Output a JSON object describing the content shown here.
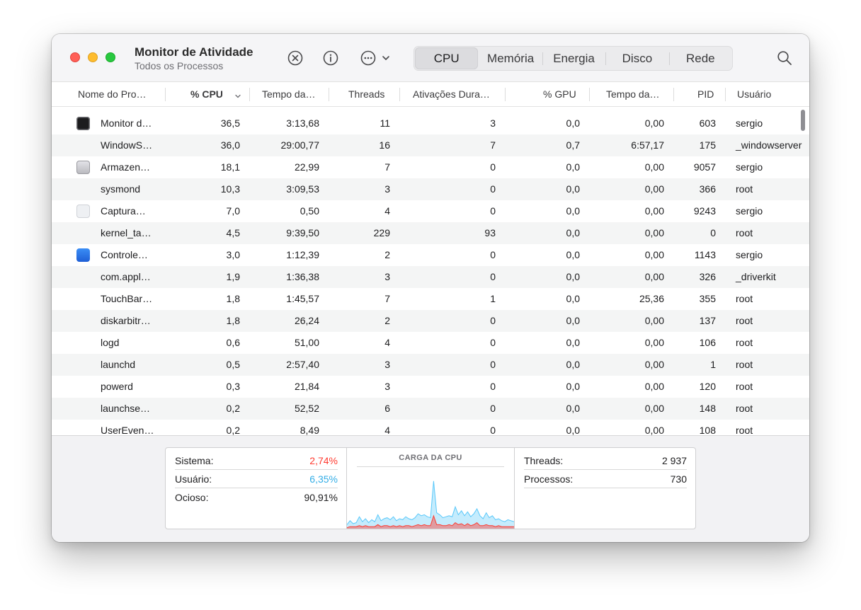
{
  "window": {
    "title": "Monitor de Atividade",
    "subtitle": "Todos os Processos"
  },
  "toolbar": {
    "icons": [
      "stop-process-icon",
      "info-icon",
      "more-options-icon",
      "chevron-down-icon",
      "search-icon"
    ],
    "tabs": [
      {
        "label": "CPU",
        "active": true
      },
      {
        "label": "Memória",
        "active": false
      },
      {
        "label": "Energia",
        "active": false
      },
      {
        "label": "Disco",
        "active": false
      },
      {
        "label": "Rede",
        "active": false
      }
    ]
  },
  "columns": {
    "name": "Nome do Pro…",
    "cpu": "% CPU",
    "cpu_time": "Tempo da…",
    "threads": "Threads",
    "wakeups": "Ativações Dura…",
    "gpu": "% GPU",
    "gpu_time": "Tempo da…",
    "pid": "PID",
    "user": "Usuário",
    "sort_indicator": "chevron-down-icon"
  },
  "processes": [
    {
      "name": "Monitor d…",
      "icon": "activity-monitor-icon",
      "cpu": "36,5",
      "cpu_time": "3:13,68",
      "threads": "11",
      "wakeups": "3",
      "gpu": "0,0",
      "gpu_time": "0,00",
      "pid": "603",
      "user": "sergio"
    },
    {
      "name": "WindowS…",
      "icon": "",
      "cpu": "36,0",
      "cpu_time": "29:00,77",
      "threads": "16",
      "wakeups": "7",
      "gpu": "0,7",
      "gpu_time": "6:57,17",
      "pid": "175",
      "user": "_windowserver"
    },
    {
      "name": "Armazen…",
      "icon": "storage-icon",
      "cpu": "18,1",
      "cpu_time": "22,99",
      "threads": "7",
      "wakeups": "0",
      "gpu": "0,0",
      "gpu_time": "0,00",
      "pid": "9057",
      "user": "sergio"
    },
    {
      "name": "sysmond",
      "icon": "",
      "cpu": "10,3",
      "cpu_time": "3:09,53",
      "threads": "3",
      "wakeups": "0",
      "gpu": "0,0",
      "gpu_time": "0,00",
      "pid": "366",
      "user": "root"
    },
    {
      "name": "Captura…",
      "icon": "screenshot-icon",
      "cpu": "7,0",
      "cpu_time": "0,50",
      "threads": "4",
      "wakeups": "0",
      "gpu": "0,0",
      "gpu_time": "0,00",
      "pid": "9243",
      "user": "sergio"
    },
    {
      "name": "kernel_ta…",
      "icon": "",
      "cpu": "4,5",
      "cpu_time": "9:39,50",
      "threads": "229",
      "wakeups": "93",
      "gpu": "0,0",
      "gpu_time": "0,00",
      "pid": "0",
      "user": "root"
    },
    {
      "name": "Controle…",
      "icon": "control-center-icon",
      "cpu": "3,0",
      "cpu_time": "1:12,39",
      "threads": "2",
      "wakeups": "0",
      "gpu": "0,0",
      "gpu_time": "0,00",
      "pid": "1143",
      "user": "sergio"
    },
    {
      "name": "com.appl…",
      "icon": "",
      "cpu": "1,9",
      "cpu_time": "1:36,38",
      "threads": "3",
      "wakeups": "0",
      "gpu": "0,0",
      "gpu_time": "0,00",
      "pid": "326",
      "user": "_driverkit"
    },
    {
      "name": "TouchBar…",
      "icon": "",
      "cpu": "1,8",
      "cpu_time": "1:45,57",
      "threads": "7",
      "wakeups": "1",
      "gpu": "0,0",
      "gpu_time": "25,36",
      "pid": "355",
      "user": "root"
    },
    {
      "name": "diskarbitr…",
      "icon": "",
      "cpu": "1,8",
      "cpu_time": "26,24",
      "threads": "2",
      "wakeups": "0",
      "gpu": "0,0",
      "gpu_time": "0,00",
      "pid": "137",
      "user": "root"
    },
    {
      "name": "logd",
      "icon": "",
      "cpu": "0,6",
      "cpu_time": "51,00",
      "threads": "4",
      "wakeups": "0",
      "gpu": "0,0",
      "gpu_time": "0,00",
      "pid": "106",
      "user": "root"
    },
    {
      "name": "launchd",
      "icon": "",
      "cpu": "0,5",
      "cpu_time": "2:57,40",
      "threads": "3",
      "wakeups": "0",
      "gpu": "0,0",
      "gpu_time": "0,00",
      "pid": "1",
      "user": "root"
    },
    {
      "name": "powerd",
      "icon": "",
      "cpu": "0,3",
      "cpu_time": "21,84",
      "threads": "3",
      "wakeups": "0",
      "gpu": "0,0",
      "gpu_time": "0,00",
      "pid": "120",
      "user": "root"
    },
    {
      "name": "launchse…",
      "icon": "",
      "cpu": "0,2",
      "cpu_time": "52,52",
      "threads": "6",
      "wakeups": "0",
      "gpu": "0,0",
      "gpu_time": "0,00",
      "pid": "148",
      "user": "root"
    },
    {
      "name": "UserEven…",
      "icon": "",
      "cpu": "0,2",
      "cpu_time": "8,49",
      "threads": "4",
      "wakeups": "0",
      "gpu": "0,0",
      "gpu_time": "0,00",
      "pid": "108",
      "user": "root"
    }
  ],
  "stats": {
    "sistema_label": "Sistema:",
    "sistema_value": "2,74%",
    "usuario_label": "Usuário:",
    "usuario_value": "6,35%",
    "ocioso_label": "Ocioso:",
    "ocioso_value": "90,91%",
    "threads_label": "Threads:",
    "threads_value": "2 937",
    "processos_label": "Processos:",
    "processos_value": "730"
  },
  "cpu_load": {
    "title": "CARGA DA CPU",
    "colors": {
      "system": "#ff3b30",
      "user": "#5ac8fa",
      "system_text": "#ff3b30",
      "user_text": "#32ade6"
    },
    "user_series": [
      4,
      8,
      5,
      6,
      12,
      7,
      10,
      6,
      9,
      7,
      14,
      8,
      10,
      11,
      9,
      12,
      8,
      10,
      9,
      12,
      10,
      9,
      11,
      15,
      13,
      14,
      12,
      11,
      48,
      16,
      14,
      11,
      12,
      13,
      12,
      22,
      14,
      18,
      13,
      17,
      12,
      15,
      20,
      13,
      10,
      16,
      11,
      13,
      9,
      10,
      8,
      7,
      9,
      8,
      7
    ],
    "system_series": [
      1,
      2,
      2,
      2,
      3,
      2,
      3,
      2,
      2,
      2,
      4,
      2,
      3,
      3,
      2,
      3,
      2,
      3,
      2,
      3,
      3,
      2,
      3,
      4,
      3,
      4,
      3,
      3,
      13,
      4,
      4,
      3,
      3,
      4,
      3,
      6,
      4,
      5,
      3,
      5,
      3,
      4,
      6,
      3,
      3,
      4,
      3,
      3,
      2,
      3,
      2,
      2,
      2,
      2,
      2
    ]
  }
}
